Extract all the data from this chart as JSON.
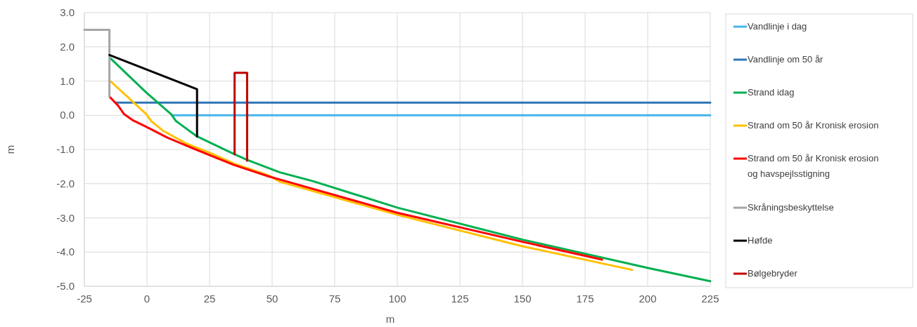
{
  "chart_data": {
    "type": "line",
    "xlabel": "m",
    "ylabel": "m",
    "xlim": [
      -25,
      225
    ],
    "ylim": [
      -5,
      3
    ],
    "xticks": [
      -25,
      0,
      25,
      50,
      75,
      100,
      125,
      150,
      175,
      200,
      225
    ],
    "yticks": [
      {
        "value": -5,
        "label": "-5.0"
      },
      {
        "value": -4,
        "label": "-4.0"
      },
      {
        "value": -3,
        "label": "-3.0"
      },
      {
        "value": -2,
        "label": "-2.0"
      },
      {
        "value": -1,
        "label": "-1.0"
      },
      {
        "value": 0,
        "label": "0.0"
      },
      {
        "value": 1,
        "label": "1.0"
      },
      {
        "value": 2,
        "label": "2.0"
      },
      {
        "value": 3,
        "label": "3.0"
      }
    ],
    "grid": true,
    "legend": "right",
    "marker": "none",
    "line_style": "solid",
    "series": [
      {
        "name": "Vandlinje i dag",
        "color": "#45b4e8",
        "x": [
          10,
          225
        ],
        "values": [
          0,
          0
        ]
      },
      {
        "name": "Vandlinje om 50 år",
        "color": "#2e75b6",
        "x": [
          -12.4,
          225
        ],
        "values": [
          0.37,
          0.37
        ]
      },
      {
        "name": "Strand idag",
        "color": "#00b050",
        "x": [
          -14.5,
          -0.2,
          9.7,
          11.6,
          20,
          35,
          40.2,
          53.1,
          66.5,
          100,
          150.2,
          200.6,
          225
        ],
        "values": [
          1.66,
          0.66,
          0.03,
          -0.17,
          -0.62,
          -1.14,
          -1.31,
          -1.67,
          -1.93,
          -2.7,
          -3.64,
          -4.47,
          -4.85
        ]
      },
      {
        "name": "Strand om 50 år Kronisk erosion",
        "color": "#ffc000",
        "x": [
          -14.5,
          -0.2,
          1.7,
          6.4,
          15.8,
          25.2,
          34.6,
          48.7,
          53,
          100,
          150,
          193.8
        ],
        "values": [
          0.99,
          0.03,
          -0.17,
          -0.45,
          -0.83,
          -1.1,
          -1.41,
          -1.76,
          -1.94,
          -2.91,
          -3.83,
          -4.52
        ]
      },
      {
        "name": "Strand om 50 år Kronisk erosion og havspejlsstigning",
        "color": "#ff0000",
        "x": [
          -14.8,
          -11.5,
          -9.1,
          -5.8,
          -0.2,
          8.3,
          19.5,
          34.6,
          48.7,
          53.1,
          100,
          150,
          181.8
        ],
        "values": [
          0.53,
          0.28,
          0.03,
          -0.14,
          -0.34,
          -0.66,
          -1,
          -1.45,
          -1.79,
          -1.88,
          -2.85,
          -3.7,
          -4.22
        ]
      },
      {
        "name": "Skråningsbeskyttelse",
        "color": "#a5a5a5",
        "x": [
          -25,
          -15,
          -15
        ],
        "values": [
          2.5,
          2.5,
          0.55
        ]
      },
      {
        "name": "Høfde",
        "color": "#000000",
        "x": [
          -15,
          20,
          20
        ],
        "values": [
          1.76,
          0.76,
          -0.62
        ]
      },
      {
        "name": "Bølgebryder",
        "color": "#c00000",
        "x": [
          35,
          35,
          40,
          40
        ],
        "values": [
          -1.14,
          1.24,
          1.24,
          -1.33
        ]
      }
    ]
  }
}
